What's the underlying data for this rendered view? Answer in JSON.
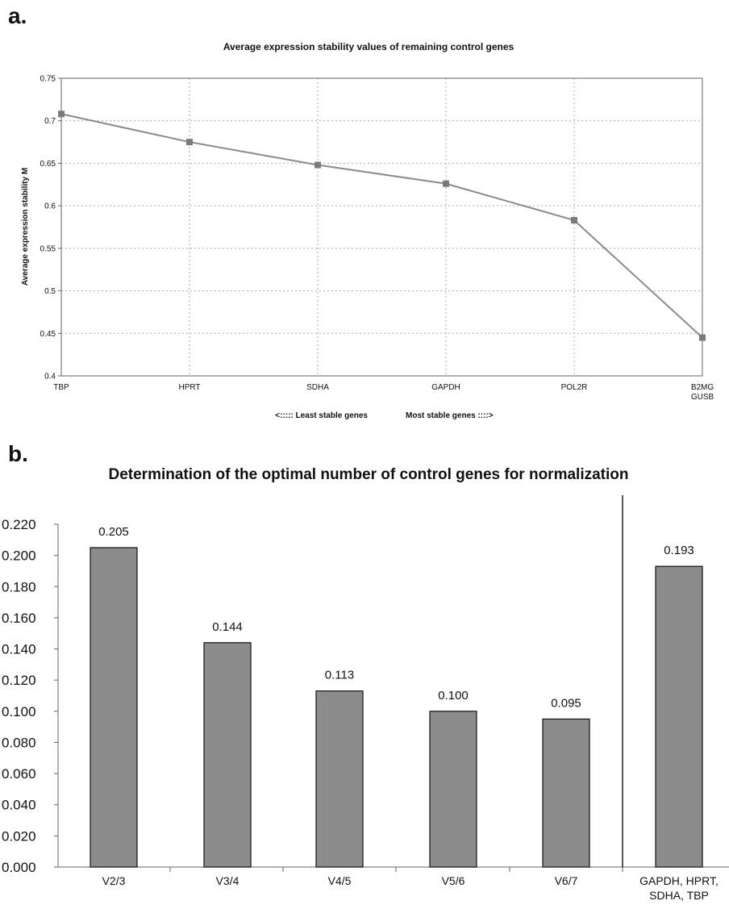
{
  "panels": {
    "a": {
      "letter": "a."
    },
    "b": {
      "letter": "b."
    }
  },
  "colors": {
    "line": "#8a8a8a",
    "bar_fill": "#8c8c8c",
    "bar_stroke": "#111111",
    "grid": "#aaaaaa",
    "axis": "#666666"
  },
  "chart_data": [
    {
      "type": "line",
      "title": "Average expression stability values of remaining control genes",
      "ylabel": "Average expression stability M",
      "xnote_left": "<:::::  Least stable genes",
      "xnote_right": "Most stable genes ::::>",
      "categories": [
        [
          "TBP"
        ],
        [
          "HPRT"
        ],
        [
          "SDHA"
        ],
        [
          "GAPDH"
        ],
        [
          "POL2R"
        ],
        [
          "B2MG",
          "GUSB"
        ]
      ],
      "values": [
        0.708,
        0.675,
        0.648,
        0.626,
        0.583,
        0.445
      ],
      "ylim": [
        0.4,
        0.75
      ],
      "yticks": [
        "0.4",
        "0.45",
        "0.5",
        "0.55",
        "0.6",
        "0.65",
        "0.7",
        "0.75"
      ],
      "grid": true,
      "legend": "none"
    },
    {
      "type": "bar",
      "title": "Determination of the optimal number of control genes for normalization",
      "categories": [
        [
          "V2/3"
        ],
        [
          "V3/4"
        ],
        [
          "V4/5"
        ],
        [
          "V5/6"
        ],
        [
          "V6/7"
        ],
        [
          "GAPDH, HPRT,",
          "SDHA, TBP"
        ]
      ],
      "values": [
        0.205,
        0.144,
        0.113,
        0.1,
        0.095,
        0.193
      ],
      "data_labels": [
        "0.205",
        "0.144",
        "0.113",
        "0.100",
        "0.095",
        "0.193"
      ],
      "ylim": [
        0,
        0.22
      ],
      "yticks": [
        "0.000",
        "0.020",
        "0.040",
        "0.060",
        "0.080",
        "0.100",
        "0.120",
        "0.140",
        "0.160",
        "0.180",
        "0.200",
        "0.220"
      ],
      "separator_before_last": true,
      "grid": false,
      "legend": "none"
    }
  ]
}
